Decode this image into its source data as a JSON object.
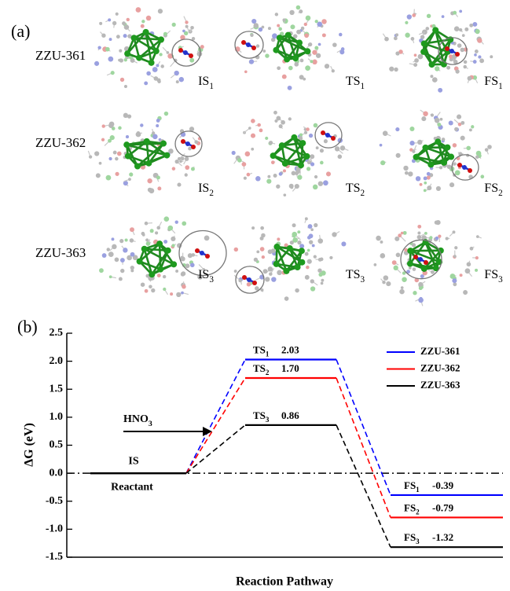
{
  "panel_a": {
    "label": "(a)",
    "rows": [
      {
        "name": "ZZU-361",
        "states": [
          {
            "text": "IS",
            "sub": "1"
          },
          {
            "text": "TS",
            "sub": "1"
          },
          {
            "text": "FS",
            "sub": "1"
          }
        ]
      },
      {
        "name": "ZZU-362",
        "states": [
          {
            "text": "IS",
            "sub": "2"
          },
          {
            "text": "TS",
            "sub": "2"
          },
          {
            "text": "FS",
            "sub": "2"
          }
        ]
      },
      {
        "name": "ZZU-363",
        "states": [
          {
            "text": "IS",
            "sub": "3"
          },
          {
            "text": "TS",
            "sub": "3"
          },
          {
            "text": "FS",
            "sub": "3"
          }
        ]
      }
    ]
  },
  "chart_data": {
    "type": "energy",
    "panel_label": "(b)",
    "xlabel": "Reaction Pathway",
    "ylabel": "ΔG (eV)",
    "categories": [
      "IS",
      "TS",
      "FS"
    ],
    "reactant_label": "Reactant",
    "annotation": "HNO",
    "annotation_sub": "3",
    "hline": 0,
    "legend": "upper right",
    "ylim": [
      -1.5,
      2.5
    ],
    "yticks": [
      -1.5,
      {
        "value": -1,
        "label": "-1.0"
      },
      -0.5,
      {
        "value": 0,
        "label": "0.0"
      },
      0.5,
      {
        "value": 1,
        "label": "1.0"
      },
      1.5,
      {
        "value": 2,
        "label": "2.0"
      },
      2.5
    ],
    "series": [
      {
        "name": "ZZU-361",
        "sub": "1",
        "color": "#0000ff",
        "values": [
          0,
          2.03,
          -0.39
        ],
        "value_labels": [
          null,
          "2.03",
          "-0.39"
        ]
      },
      {
        "name": "ZZU-362",
        "sub": "2",
        "color": "#ff0000",
        "values": [
          0,
          1.7,
          -0.79
        ],
        "value_labels": [
          null,
          "1.70",
          "-0.79"
        ]
      },
      {
        "name": "ZZU-363",
        "sub": "3",
        "color": "#000000",
        "values": [
          0,
          0.86,
          -1.32
        ],
        "value_labels": [
          null,
          "0.86",
          "-1.32"
        ]
      }
    ]
  }
}
